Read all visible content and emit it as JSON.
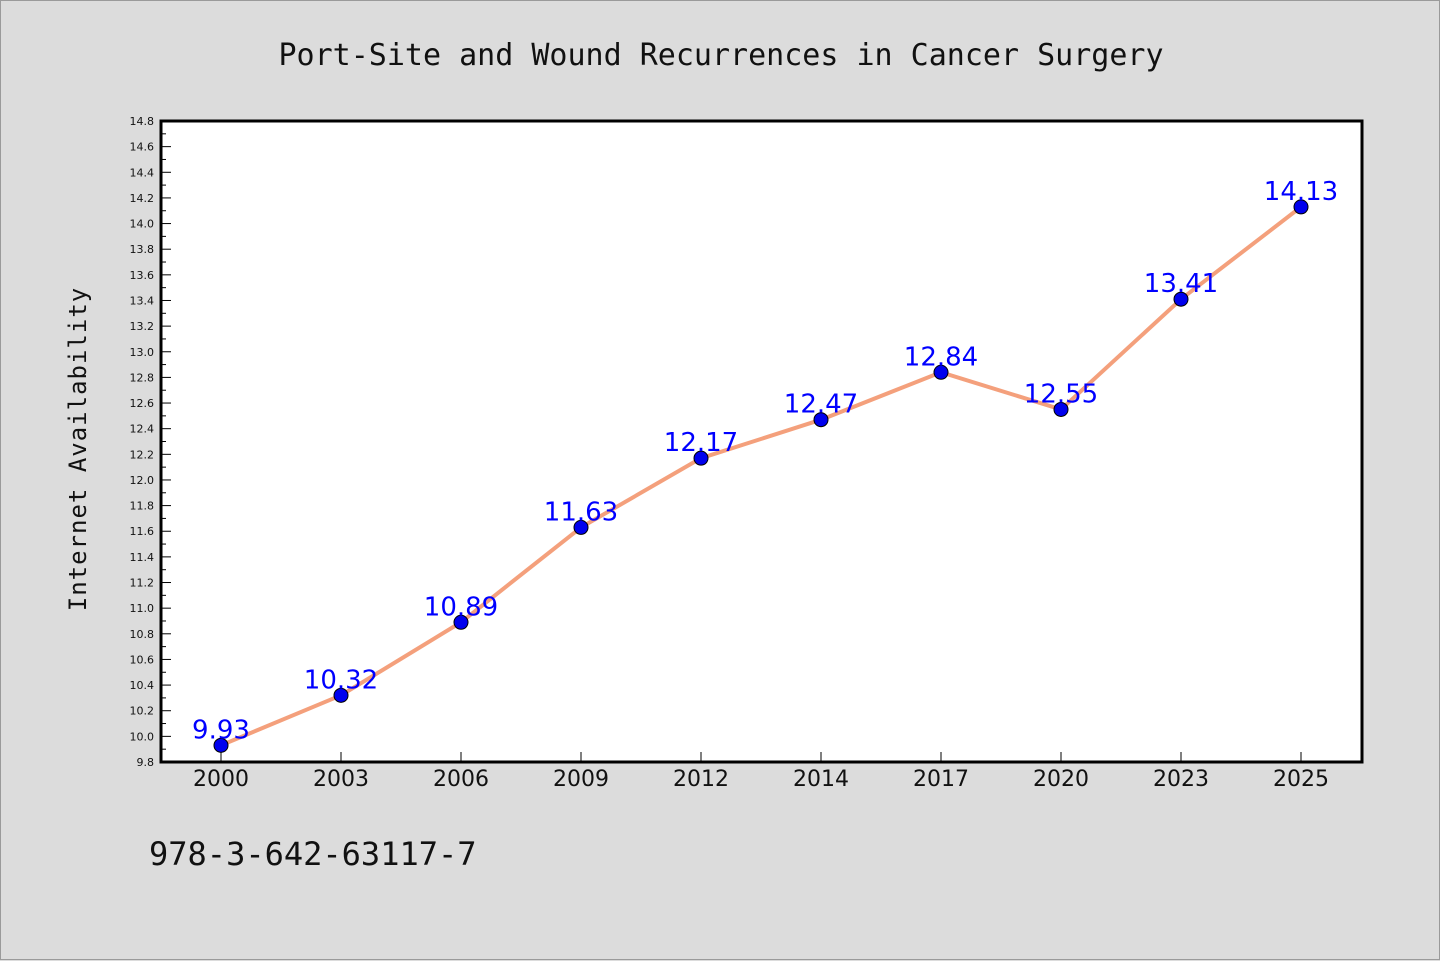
{
  "chart_data": {
    "type": "line",
    "title": "Port-Site and Wound Recurrences in Cancer Surgery",
    "xlabel": "",
    "ylabel": "Internet Availability",
    "categories": [
      "2000",
      "2003",
      "2006",
      "2009",
      "2012",
      "2014",
      "2017",
      "2020",
      "2023",
      "2025"
    ],
    "series": [
      {
        "values": [
          9.93,
          10.32,
          10.89,
          11.63,
          12.17,
          12.47,
          12.84,
          12.55,
          13.41,
          14.13
        ],
        "data_labels": [
          "9.93",
          "10.32",
          "10.89",
          "11.63",
          "12.17",
          "12.47",
          "12.84",
          "12.55",
          "13.41",
          "14.13"
        ],
        "line_color": "#f4a07c",
        "marker_color": "#0000ee"
      }
    ],
    "ylim": [
      9.8,
      14.8
    ],
    "yticks": [
      "9.8",
      "10.0",
      "10.2",
      "10.4",
      "10.6",
      "10.8",
      "11.0",
      "11.2",
      "11.4",
      "11.6",
      "11.8",
      "12.0",
      "12.2",
      "12.4",
      "12.6",
      "12.8",
      "13.0",
      "13.2",
      "13.4",
      "13.6",
      "13.8",
      "14.0",
      "14.2",
      "14.4",
      "14.6",
      "14.8"
    ],
    "grid": false,
    "legend": "none",
    "label_color": "#0000ff"
  },
  "footer": {
    "isbn": "978-3-642-63117-7"
  }
}
